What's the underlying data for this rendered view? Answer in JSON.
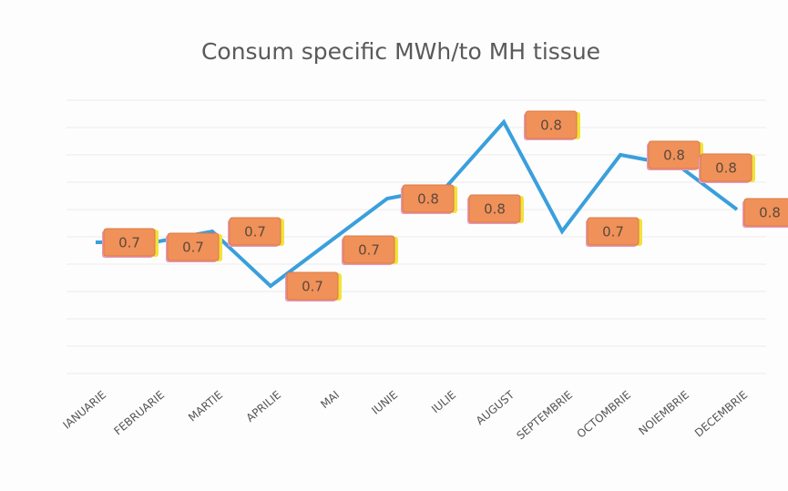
{
  "chart_data": {
    "type": "line",
    "title": "Consum specific MWh/to MH tissue",
    "categories": [
      "IANUARIE",
      "FEBRUARIE",
      "MARTIE",
      "APRILIE",
      "MAI",
      "IUNIE",
      "IULIE",
      "AUGUST",
      "SEPTEMBRIE",
      "OCTOMBRIE",
      "NOIEMBRIE",
      "DECEMBRIE"
    ],
    "series": [
      {
        "name": "Consum specific",
        "color": "#3a9fdc",
        "values": [
          0.73,
          0.73,
          0.74,
          0.69,
          0.73,
          0.77,
          0.78,
          0.84,
          0.74,
          0.81,
          0.8,
          0.76
        ],
        "value_labels": [
          "0.7",
          "0.7",
          "0.7",
          "0.7",
          "0.7",
          "0.8",
          "0.8",
          "0.8",
          "0.7",
          "0.8",
          "0.8",
          "0.8"
        ]
      }
    ],
    "ylim": [
      0.61,
      0.86
    ],
    "grid": true,
    "label_color": "#f0915a"
  }
}
